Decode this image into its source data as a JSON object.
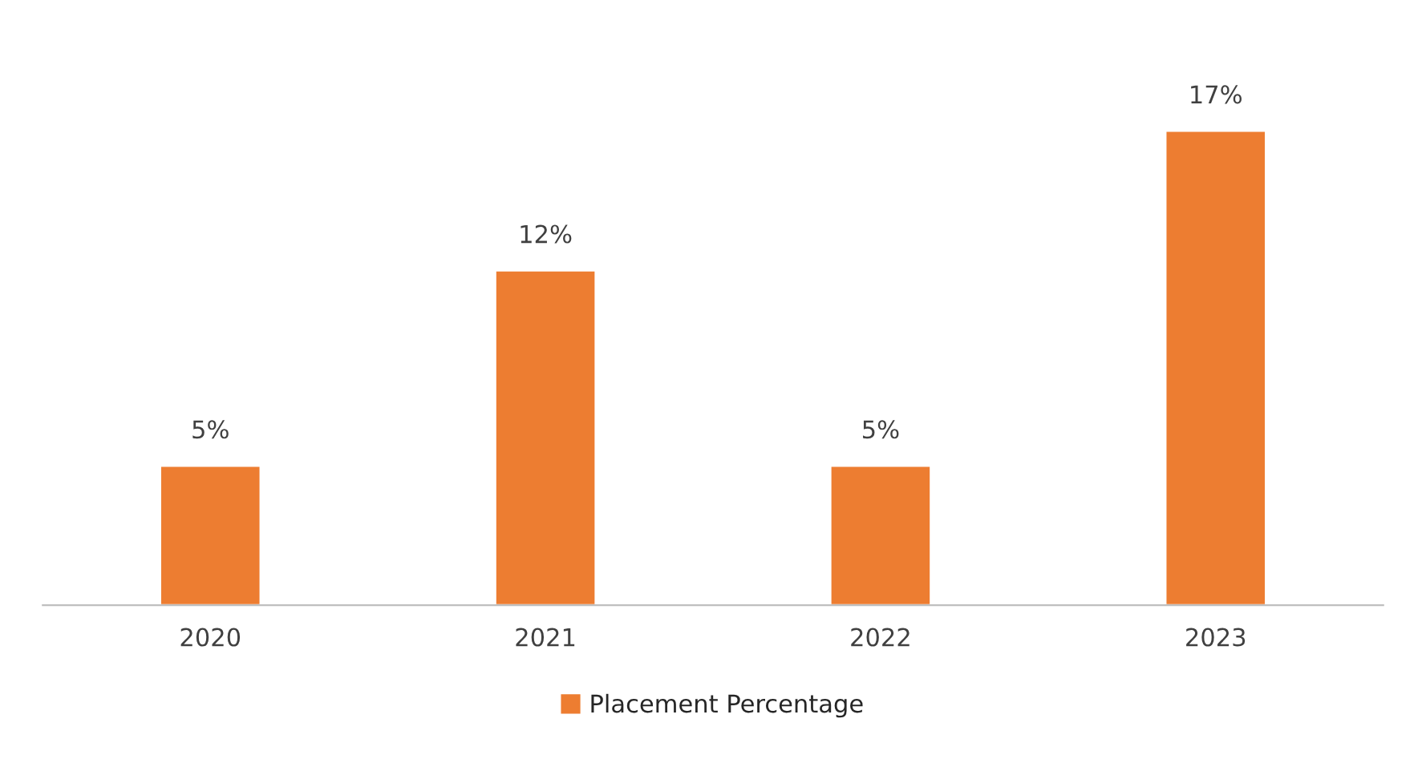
{
  "chart_data": {
    "type": "bar",
    "categories": [
      "2020",
      "2021",
      "2022",
      "2023"
    ],
    "series": [
      {
        "name": "Placement Percentage",
        "color": "#ed7d31",
        "values": [
          5,
          12,
          5,
          17
        ],
        "value_labels": [
          "5%",
          "12%",
          "5%",
          "17%"
        ]
      }
    ],
    "legend": "bottom",
    "grid": false
  }
}
